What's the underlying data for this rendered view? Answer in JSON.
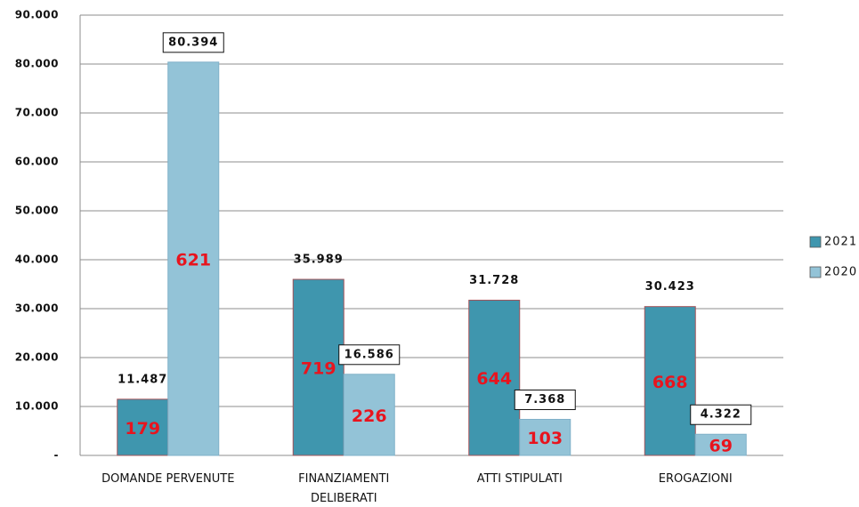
{
  "chart_data": {
    "type": "bar",
    "categories": [
      "DOMANDE PERVENUTE",
      "FINANZIAMENTI DELIBERATI",
      "ATTI STIPULATI",
      "EROGAZIONI"
    ],
    "series": [
      {
        "name": "2021",
        "color": "#3f96ae",
        "values": [
          11487,
          35989,
          31728,
          30423
        ],
        "value_labels": [
          "11.487",
          "35.989",
          "31.728",
          "30.423"
        ],
        "inner_labels": [
          179,
          719,
          644,
          668
        ]
      },
      {
        "name": "2020",
        "color": "#93c3d7",
        "values": [
          80394,
          16586,
          7368,
          4322
        ],
        "value_labels": [
          "80.394",
          "16.586",
          "7.368",
          "4.322"
        ],
        "inner_labels": [
          621,
          226,
          103,
          69
        ]
      }
    ],
    "ylim": [
      0,
      90000
    ],
    "yticks": [
      {
        "value": 0,
        "label": "-"
      },
      {
        "value": 10000,
        "label": "10.000"
      },
      {
        "value": 20000,
        "label": "20.000"
      },
      {
        "value": 30000,
        "label": "30.000"
      },
      {
        "value": 40000,
        "label": "40.000"
      },
      {
        "value": 50000,
        "label": "50.000"
      },
      {
        "value": 60000,
        "label": "60.000"
      },
      {
        "value": 70000,
        "label": "70.000"
      },
      {
        "value": 80000,
        "label": "80.000"
      },
      {
        "value": 90000,
        "label": "90.000"
      }
    ],
    "grid": true,
    "legend": "right",
    "inner_label_color": "#e8141e"
  }
}
